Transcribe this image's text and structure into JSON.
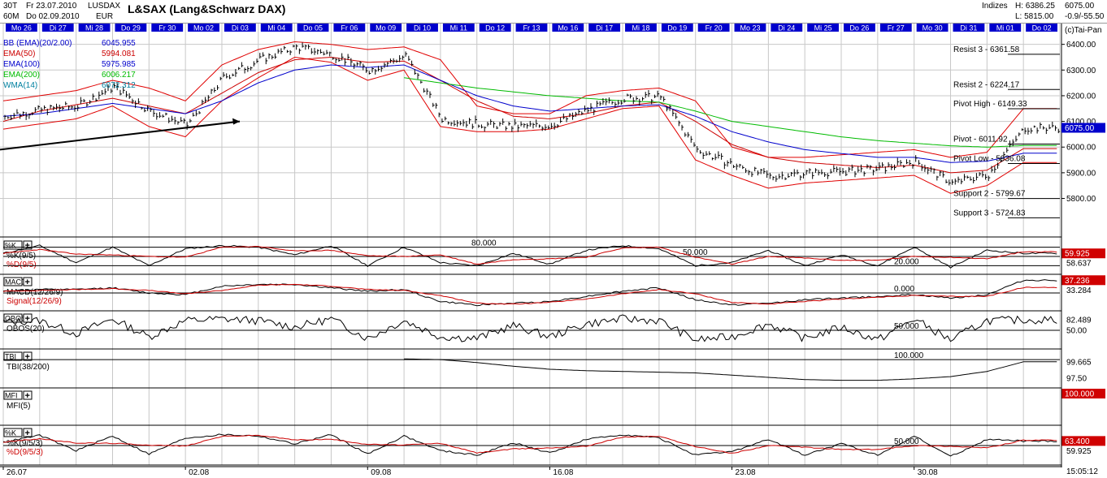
{
  "header": {
    "timeframe_top": "30T",
    "timeframe_bottom": "60M",
    "date_from": "Fr 23.07.2010",
    "date_to": "Do 02.09.2010",
    "symbol": "LUSDAX",
    "currency": "EUR",
    "title": "L&SAX (Lang&Schwarz DAX)",
    "market": "Indizes",
    "high_label": "H: 6386.25",
    "low_label": "L: 5815.00",
    "last_price": "6075.00",
    "change": "-0.9/-55.50",
    "copyright": "(c)Tai-Pan",
    "clock": "15:05:12"
  },
  "colors": {
    "day_bar": "#0000cc",
    "day_text": "#ffffff",
    "bollinger": "#e00000",
    "ema50": "#cc0000",
    "ema100": "#0000cc",
    "ema200": "#00bb00",
    "wma14": "#0080a0",
    "price_box": "#0000cc",
    "indicator_box": "#d00000",
    "grid": "#c8c8c8"
  },
  "day_labels": [
    "Mo 26",
    "Di 27",
    "Mi 28",
    "Do 29",
    "Fr 30",
    "Mo 02",
    "Di 03",
    "Mi 04",
    "Do 05",
    "Fr 06",
    "Mo 09",
    "Di 10",
    "Mi 11",
    "Do 12",
    "Fr 13",
    "Mo 16",
    "Di 17",
    "Mi 18",
    "Do 19",
    "Fr 20",
    "Mo 23",
    "Di 24",
    "Mi 25",
    "Do 26",
    "Fr 27",
    "Mo 30",
    "Di 31",
    "Mi 01",
    "Do 02"
  ],
  "date_axis": [
    "26.07",
    "02.08",
    "09.08",
    "16.08",
    "23.08",
    "30.08"
  ],
  "legend": [
    {
      "name": "BB (EMA)(20/2.00)",
      "value": "6045.955",
      "color": "#0000cc"
    },
    {
      "name": "EMA(50)",
      "value": "5994.081",
      "color": "#cc0000"
    },
    {
      "name": "EMA(100)",
      "value": "5975.985",
      "color": "#0000cc"
    },
    {
      "name": "EMA(200)",
      "value": "6006.217",
      "color": "#00bb00"
    },
    {
      "name": "WMA(14)",
      "value": "6072.312",
      "color": "#0080a0"
    }
  ],
  "pivots": [
    {
      "label": "Resist 3 - 6361.58",
      "value": 6361.58
    },
    {
      "label": "Resist 2 - 6224.17",
      "value": 6224.17
    },
    {
      "label": "Pivot High - 6149.33",
      "value": 6149.33
    },
    {
      "label": "Pivot - 6011.92",
      "value": 6011.92
    },
    {
      "label": "Pivot Low - 5936.08",
      "value": 5936.08
    },
    {
      "label": "Support 2 - 5799.67",
      "value": 5799.67
    },
    {
      "label": "Support 3 - 5724.83",
      "value": 5724.83
    }
  ],
  "price_axis": [
    "6400.00",
    "6300.00",
    "6200.00",
    "6100.00",
    "6000.00",
    "5900.00",
    "5800.00"
  ],
  "panels": [
    {
      "key": "stoch1",
      "tag": "%K",
      "lines": [
        "%K(9/5)",
        "%D(9/5)"
      ],
      "levels": [
        {
          "label": "80.000",
          "v": 80
        },
        {
          "label": "50.000",
          "v": 50
        },
        {
          "label": "20.000",
          "v": 20
        }
      ],
      "axis": [
        {
          "label": "59.925",
          "v": 59.925,
          "box": true
        },
        {
          "label": "58.637",
          "v": 58.637,
          "box": false
        }
      ],
      "range": [
        0,
        100
      ]
    },
    {
      "key": "macd",
      "tag": "MACD",
      "lines": [
        "MACD(12/26/9)",
        "Signal(12/26/9)"
      ],
      "levels": [
        {
          "label": "0.000",
          "v": 0
        }
      ],
      "axis": [
        {
          "label": "37.236",
          "v": 37.236,
          "box": true
        },
        {
          "label": "33.284",
          "v": 33.284,
          "box": false
        }
      ],
      "range": [
        -45,
        45
      ]
    },
    {
      "key": "obos",
      "tag": "OBOS",
      "lines": [
        "OBOS(20)"
      ],
      "levels": [
        {
          "label": "50.000",
          "v": 50
        }
      ],
      "axis": [
        {
          "label": "82.489",
          "v": 82.489,
          "box": false
        },
        {
          "label": "50.00",
          "v": 50,
          "box": false
        }
      ],
      "range": [
        0,
        100
      ]
    },
    {
      "key": "tbi",
      "tag": "TBI",
      "lines": [
        "TBI(38/200)"
      ],
      "levels": [
        {
          "label": "100.000",
          "v": 100
        }
      ],
      "axis": [
        {
          "label": "99.665",
          "v": 99.665,
          "box": false
        },
        {
          "label": "97.50",
          "v": 97.5,
          "box": false
        }
      ],
      "range": [
        96.5,
        101
      ]
    },
    {
      "key": "mfi",
      "tag": "MFI",
      "lines": [
        "MFI(5)"
      ],
      "levels": [],
      "axis": [
        {
          "label": "100.000",
          "v": 100,
          "box": true
        }
      ],
      "range": [
        0,
        100
      ]
    },
    {
      "key": "stoch2",
      "tag": "%K",
      "lines": [
        "%K(9/5/3)",
        "%D(9/5/3)"
      ],
      "levels": [
        {
          "label": "50.000",
          "v": 50
        }
      ],
      "axis": [
        {
          "label": "63.400",
          "v": 63.4,
          "box": true
        },
        {
          "label": "59.925",
          "v": 59.925,
          "box": false
        }
      ],
      "range": [
        0,
        100
      ]
    }
  ],
  "chart_data": {
    "type": "line",
    "title": "L&SAX (Lang&Schwarz DAX)",
    "x_days": [
      "Mo 26",
      "Di 27",
      "Mi 28",
      "Do 29",
      "Fr 30",
      "Mo 02",
      "Di 03",
      "Mi 04",
      "Do 05",
      "Fr 06",
      "Mo 09",
      "Di 10",
      "Mi 11",
      "Do 12",
      "Fr 13",
      "Mo 16",
      "Di 17",
      "Mi 18",
      "Do 19",
      "Fr 20",
      "Mo 23",
      "Di 24",
      "Mi 25",
      "Do 26",
      "Fr 27",
      "Mo 30",
      "Di 31",
      "Mi 01",
      "Do 02"
    ],
    "ylim": [
      5650,
      6440
    ],
    "price": [
      6120,
      6145,
      6160,
      6235,
      6140,
      6085,
      6270,
      6340,
      6390,
      6360,
      6300,
      6355,
      6110,
      6090,
      6080,
      6085,
      6145,
      6190,
      6195,
      5990,
      5930,
      5885,
      5900,
      5905,
      5915,
      5945,
      5860,
      5895,
      6075
    ],
    "series": [
      {
        "name": "EMA(50)",
        "values": [
          6100,
          6140,
          6165,
          6190,
          6160,
          6130,
          6210,
          6290,
          6340,
          6350,
          6330,
          6335,
          6260,
          6180,
          6120,
          6110,
          6130,
          6160,
          6175,
          6100,
          6010,
          5960,
          5940,
          5930,
          5920,
          5930,
          5900,
          5910,
          5994
        ]
      },
      {
        "name": "EMA(100)",
        "values": [
          6120,
          6130,
          6150,
          6170,
          6150,
          6130,
          6180,
          6250,
          6300,
          6320,
          6310,
          6320,
          6260,
          6200,
          6160,
          6140,
          6150,
          6160,
          6165,
          6120,
          6060,
          6020,
          5990,
          5975,
          5960,
          5960,
          5940,
          5945,
          5976
        ]
      },
      {
        "name": "EMA(200)",
        "values": [
          null,
          null,
          null,
          null,
          null,
          null,
          null,
          null,
          null,
          null,
          null,
          6270,
          6250,
          6230,
          6215,
          6200,
          6190,
          6180,
          6175,
          6140,
          6100,
          6080,
          6060,
          6040,
          6025,
          6015,
          6005,
          6000,
          6006
        ]
      },
      {
        "name": "BB (EMA)(20/2.00)",
        "upper": [
          6180,
          6200,
          6220,
          6260,
          6230,
          6180,
          6320,
          6380,
          6410,
          6400,
          6380,
          6390,
          6340,
          6160,
          6130,
          6130,
          6200,
          6220,
          6230,
          6180,
          6000,
          5960,
          5960,
          5970,
          5980,
          5990,
          5960,
          5980,
          6150
        ],
        "lower": [
          6070,
          6090,
          6110,
          6160,
          6080,
          6040,
          6180,
          6270,
          6350,
          6330,
          6260,
          6300,
          6080,
          6060,
          6060,
          6070,
          6110,
          6150,
          6160,
          5950,
          5890,
          5840,
          5860,
          5870,
          5880,
          5890,
          5820,
          5850,
          5940
        ]
      }
    ],
    "indicators": {
      "stoch_k_9_5": [
        60,
        85,
        30,
        80,
        20,
        75,
        85,
        80,
        55,
        85,
        20,
        80,
        30,
        20,
        60,
        25,
        70,
        85,
        75,
        20,
        30,
        70,
        20,
        55,
        20,
        80,
        15,
        70,
        60
      ],
      "macd_12_26_9": [
        5,
        10,
        10,
        15,
        0,
        -5,
        20,
        25,
        25,
        15,
        5,
        10,
        -25,
        -35,
        -30,
        -25,
        -10,
        5,
        15,
        -20,
        -35,
        -30,
        -20,
        -15,
        -10,
        -5,
        -15,
        -5,
        37
      ],
      "obos_20": [
        75,
        80,
        40,
        85,
        30,
        80,
        85,
        80,
        60,
        85,
        25,
        80,
        30,
        25,
        65,
        30,
        70,
        85,
        80,
        20,
        30,
        70,
        25,
        60,
        20,
        85,
        20,
        80,
        82
      ],
      "tbi_38_200": [
        null,
        null,
        null,
        null,
        null,
        null,
        null,
        null,
        null,
        null,
        null,
        100.1,
        100.0,
        99.6,
        99.1,
        98.7,
        98.5,
        98.4,
        98.3,
        98.2,
        97.9,
        97.6,
        97.3,
        97.2,
        97.2,
        97.4,
        97.7,
        98.4,
        99.7
      ],
      "mfi_5": [
        100
      ],
      "stoch_k_9_5_3": [
        60,
        80,
        35,
        78,
        25,
        72,
        82,
        78,
        55,
        82,
        25,
        78,
        35,
        22,
        58,
        28,
        68,
        82,
        72,
        22,
        32,
        68,
        22,
        55,
        22,
        78,
        18,
        68,
        63
      ]
    }
  }
}
